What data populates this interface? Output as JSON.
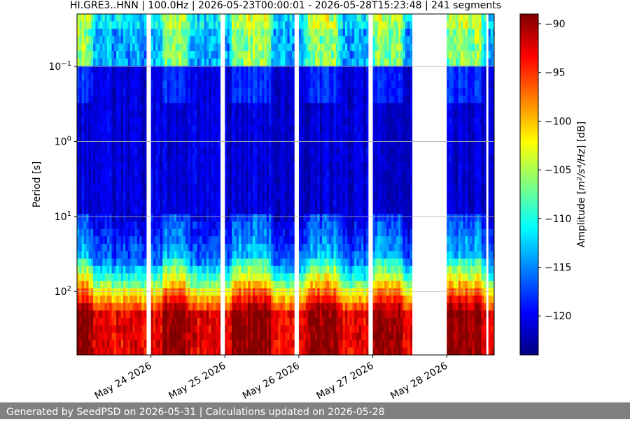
{
  "chart_data": {
    "type": "heatmap",
    "title": "HI.GRE3..HNN | 100.0Hz | 2026-05-23T00:00:01 - 2026-05-28T15:23:48 | 241 segments",
    "ylabel": "Period [s]",
    "colorbar_label_prefix": "Amplitude [",
    "colorbar_units": "m²/s⁴/Hz",
    "colorbar_label_suffix": "] [dB]",
    "y_scale": "log",
    "y_axis_inverted": true,
    "ylim": [
      0.02,
      700
    ],
    "y_ticks": [
      {
        "value": 0.1,
        "base": "10",
        "exp": "−1"
      },
      {
        "value": 1,
        "base": "10",
        "exp": "0"
      },
      {
        "value": 10,
        "base": "10",
        "exp": "1"
      },
      {
        "value": 100,
        "base": "10",
        "exp": "2"
      }
    ],
    "xlim": [
      "2026-05-23T00:00:01",
      "2026-05-28T15:23:48"
    ],
    "x_ticks": [
      "May 24 2026",
      "May 25 2026",
      "May 26 2026",
      "May 27 2026",
      "May 28 2026"
    ],
    "x_tick_dates": [
      "2026-05-24",
      "2026-05-25",
      "2026-05-26",
      "2026-05-27",
      "2026-05-28"
    ],
    "colorbar_range": [
      -124,
      -89
    ],
    "colorbar_ticks": [
      -90,
      -95,
      -100,
      -105,
      -110,
      -115,
      -120
    ],
    "colormap": "jet",
    "grid": true,
    "data_gaps": [
      [
        "2026-05-23T22:30:00",
        "2026-05-24T00:00:00"
      ],
      [
        "2026-05-24T22:45:00",
        "2026-05-25T00:00:00"
      ],
      [
        "2026-05-25T22:50:00",
        "2026-05-26T00:00:00"
      ],
      [
        "2026-05-26T22:50:00",
        "2026-05-27T00:00:00"
      ],
      [
        "2026-05-27T13:00:00",
        "2026-05-28T00:00:00"
      ],
      [
        "2026-05-28T12:30:00",
        "2026-05-28T13:30:00"
      ]
    ],
    "daily_periods_of_elevated_noise": [
      {
        "day": "2026-05-23",
        "start_h": 0,
        "end_h": 4
      },
      {
        "day": "2026-05-24",
        "start_h": 5,
        "end_h": 11
      },
      {
        "day": "2026-05-25",
        "start_h": 3,
        "end_h": 14
      },
      {
        "day": "2026-05-26",
        "start_h": 3,
        "end_h": 12
      },
      {
        "day": "2026-05-27",
        "start_h": 1,
        "end_h": 9
      },
      {
        "day": "2026-05-28",
        "start_h": 1,
        "end_h": 11
      }
    ]
  },
  "footer": {
    "text": "Generated by SeedPSD on 2026-05-31 | Calculations updated on 2026-05-28"
  }
}
